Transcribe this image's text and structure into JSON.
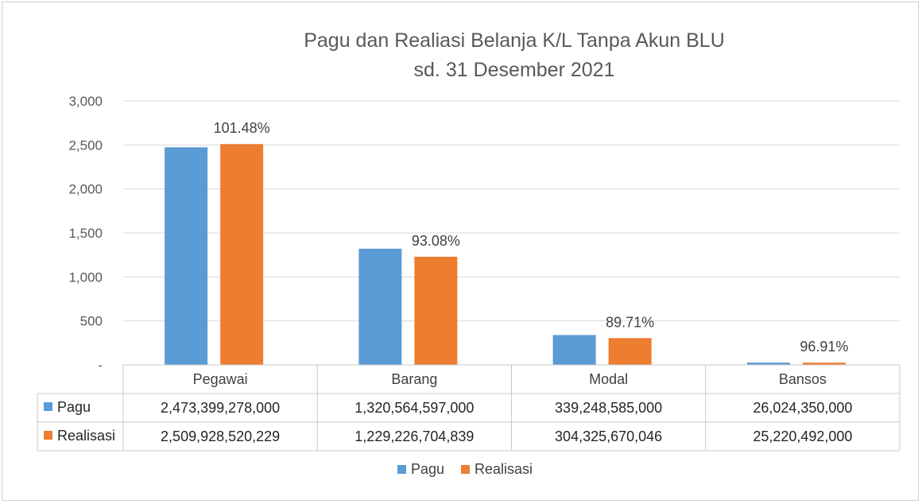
{
  "chart_data": {
    "type": "bar",
    "title": "Pagu dan Realiasi Belanja K/L Tanpa Akun BLU",
    "subtitle": "sd. 31 Desember 2021",
    "categories": [
      "Pegawai",
      "Barang",
      "Modal",
      "Bansos"
    ],
    "series": [
      {
        "name": "Pagu",
        "color": "#5b9bd5",
        "values": [
          2473.399278,
          1320.564597,
          339.248585,
          26.02435
        ],
        "table_values": [
          "2,473,399,278,000",
          "1,320,564,597,000",
          "339,248,585,000",
          "26,024,350,000"
        ]
      },
      {
        "name": "Realisasi",
        "color": "#ed7d31",
        "values": [
          2509.928520229,
          1229.226704839,
          304.325670046,
          25.220492
        ],
        "table_values": [
          "2,509,928,520,229",
          "1,229,226,704,839",
          "304,325,670,046",
          "25,220,492,000"
        ]
      }
    ],
    "data_labels": [
      "101.48%",
      "93.08%",
      "89.71%",
      "96.91%"
    ],
    "yticks": [
      0,
      500,
      1000,
      1500,
      2000,
      2500,
      3000
    ],
    "ytick_labels": [
      "-",
      "500",
      "1,000",
      "1,500",
      "2,000",
      "2,500",
      "3,000"
    ],
    "ylim": [
      0,
      3000
    ],
    "grid": true,
    "legend": "bottom",
    "data_table": true
  }
}
